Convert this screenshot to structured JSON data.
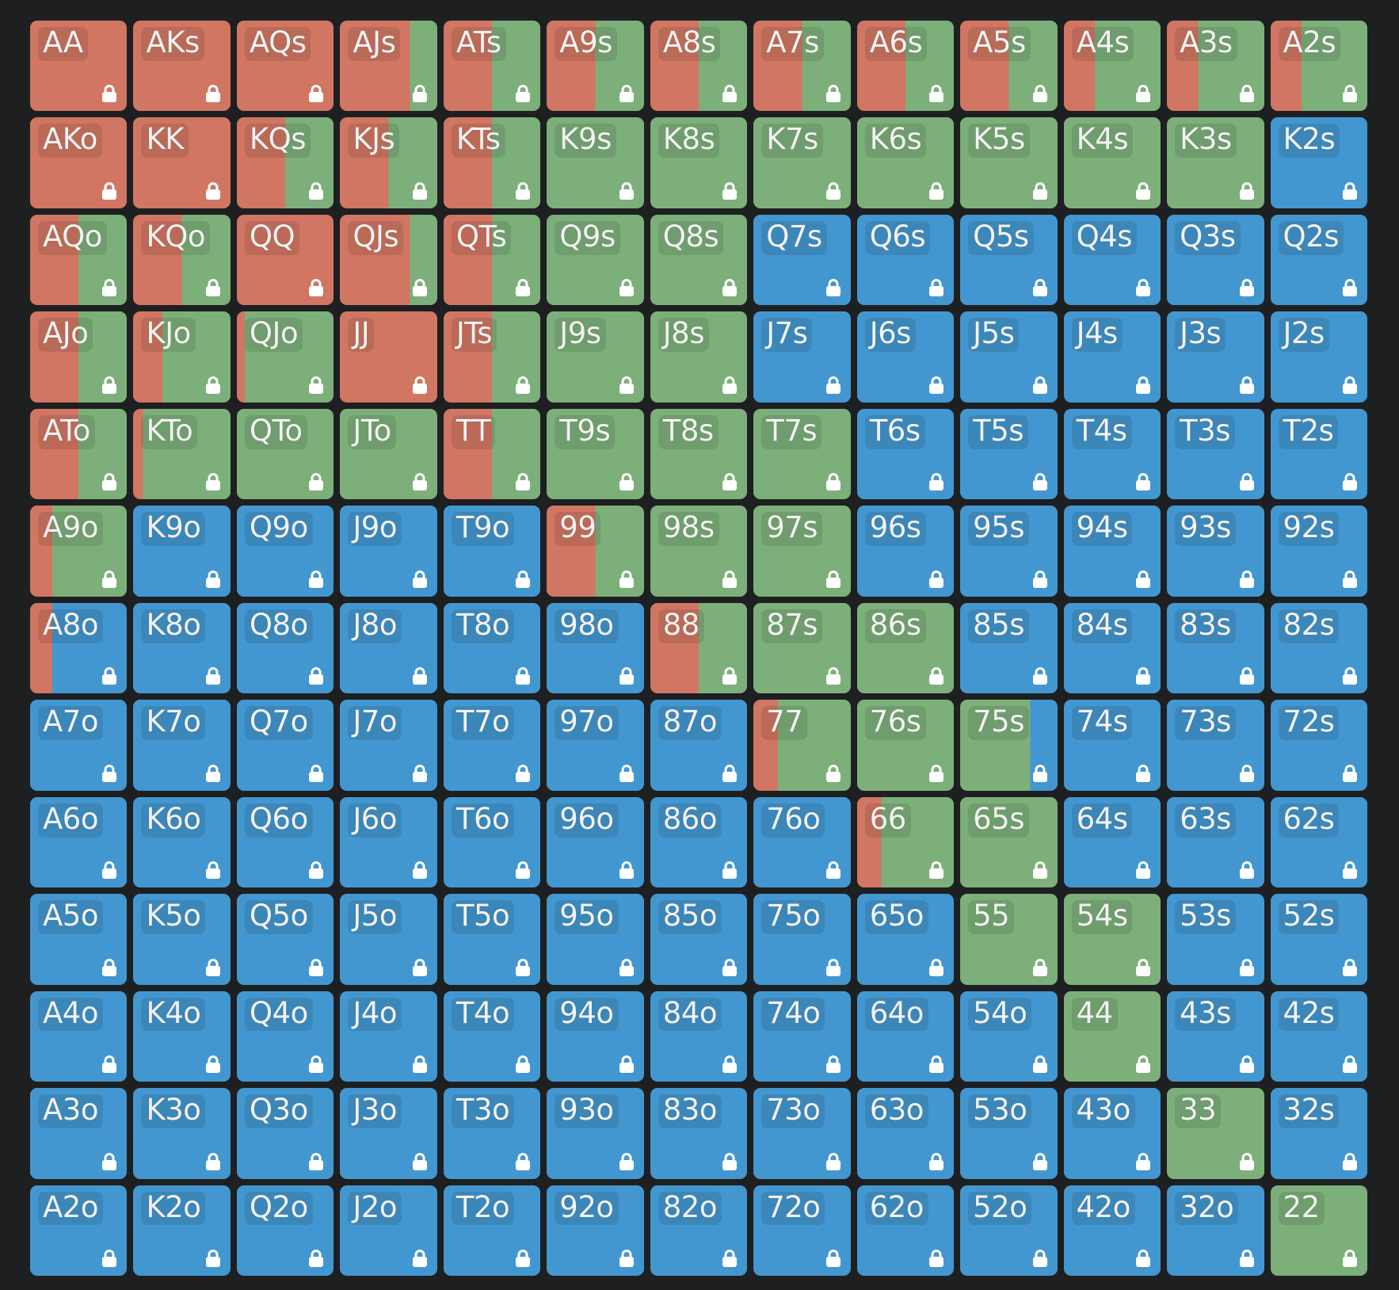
{
  "colors": {
    "raise": "#d17662",
    "call": "#7daf7a",
    "fold": "#4397d0",
    "background": "#1e1f21",
    "label_text": "#f3f3f3",
    "lock": "#ffffff"
  },
  "legend": {
    "frequency_order": [
      "raise",
      "call",
      "fold"
    ]
  },
  "icon": "lock-icon",
  "rows": [
    [
      {
        "label": "AA",
        "raise": 1,
        "call": 0
      },
      {
        "label": "AKs",
        "raise": 1,
        "call": 0
      },
      {
        "label": "AQs",
        "raise": 1,
        "call": 0
      },
      {
        "label": "AJs",
        "raise": 0.72,
        "call": 0.28
      },
      {
        "label": "ATs",
        "raise": 0.5,
        "call": 0.5
      },
      {
        "label": "A9s",
        "raise": 0.5,
        "call": 0.5
      },
      {
        "label": "A8s",
        "raise": 0.5,
        "call": 0.5
      },
      {
        "label": "A7s",
        "raise": 0.5,
        "call": 0.5
      },
      {
        "label": "A6s",
        "raise": 0.5,
        "call": 0.5
      },
      {
        "label": "A5s",
        "raise": 0.5,
        "call": 0.5
      },
      {
        "label": "A4s",
        "raise": 0.32,
        "call": 0.68
      },
      {
        "label": "A3s",
        "raise": 0.32,
        "call": 0.68
      },
      {
        "label": "A2s",
        "raise": 0.32,
        "call": 0.68
      }
    ],
    [
      {
        "label": "AKo",
        "raise": 1,
        "call": 0
      },
      {
        "label": "KK",
        "raise": 1,
        "call": 0
      },
      {
        "label": "KQs",
        "raise": 0.5,
        "call": 0.5
      },
      {
        "label": "KJs",
        "raise": 0.5,
        "call": 0.5
      },
      {
        "label": "KTs",
        "raise": 0.5,
        "call": 0.5
      },
      {
        "label": "K9s",
        "raise": 0,
        "call": 1
      },
      {
        "label": "K8s",
        "raise": 0,
        "call": 1
      },
      {
        "label": "K7s",
        "raise": 0,
        "call": 1
      },
      {
        "label": "K6s",
        "raise": 0,
        "call": 1
      },
      {
        "label": "K5s",
        "raise": 0,
        "call": 1
      },
      {
        "label": "K4s",
        "raise": 0,
        "call": 1
      },
      {
        "label": "K3s",
        "raise": 0,
        "call": 1
      },
      {
        "label": "K2s",
        "raise": 0,
        "call": 0
      }
    ],
    [
      {
        "label": "AQo",
        "raise": 0.5,
        "call": 0.5
      },
      {
        "label": "KQo",
        "raise": 0.5,
        "call": 0.5
      },
      {
        "label": "QQ",
        "raise": 1,
        "call": 0
      },
      {
        "label": "QJs",
        "raise": 0.72,
        "call": 0.28
      },
      {
        "label": "QTs",
        "raise": 0.5,
        "call": 0.5
      },
      {
        "label": "Q9s",
        "raise": 0,
        "call": 1
      },
      {
        "label": "Q8s",
        "raise": 0,
        "call": 1
      },
      {
        "label": "Q7s",
        "raise": 0,
        "call": 0
      },
      {
        "label": "Q6s",
        "raise": 0,
        "call": 0
      },
      {
        "label": "Q5s",
        "raise": 0,
        "call": 0
      },
      {
        "label": "Q4s",
        "raise": 0,
        "call": 0
      },
      {
        "label": "Q3s",
        "raise": 0,
        "call": 0
      },
      {
        "label": "Q2s",
        "raise": 0,
        "call": 0
      }
    ],
    [
      {
        "label": "AJo",
        "raise": 0.5,
        "call": 0.5
      },
      {
        "label": "KJo",
        "raise": 0.3,
        "call": 0.7
      },
      {
        "label": "QJo",
        "raise": 0.08,
        "call": 0.92
      },
      {
        "label": "JJ",
        "raise": 1,
        "call": 0
      },
      {
        "label": "JTs",
        "raise": 0.5,
        "call": 0.5
      },
      {
        "label": "J9s",
        "raise": 0,
        "call": 1
      },
      {
        "label": "J8s",
        "raise": 0,
        "call": 1
      },
      {
        "label": "J7s",
        "raise": 0,
        "call": 0
      },
      {
        "label": "J6s",
        "raise": 0,
        "call": 0
      },
      {
        "label": "J5s",
        "raise": 0,
        "call": 0
      },
      {
        "label": "J4s",
        "raise": 0,
        "call": 0
      },
      {
        "label": "J3s",
        "raise": 0,
        "call": 0
      },
      {
        "label": "J2s",
        "raise": 0,
        "call": 0
      }
    ],
    [
      {
        "label": "ATo",
        "raise": 0.5,
        "call": 0.5
      },
      {
        "label": "KTo",
        "raise": 0.1,
        "call": 0.9
      },
      {
        "label": "QTo",
        "raise": 0,
        "call": 1
      },
      {
        "label": "JTo",
        "raise": 0,
        "call": 1
      },
      {
        "label": "TT",
        "raise": 0.5,
        "call": 0.5
      },
      {
        "label": "T9s",
        "raise": 0,
        "call": 1
      },
      {
        "label": "T8s",
        "raise": 0,
        "call": 1
      },
      {
        "label": "T7s",
        "raise": 0,
        "call": 1
      },
      {
        "label": "T6s",
        "raise": 0,
        "call": 0
      },
      {
        "label": "T5s",
        "raise": 0,
        "call": 0
      },
      {
        "label": "T4s",
        "raise": 0,
        "call": 0
      },
      {
        "label": "T3s",
        "raise": 0,
        "call": 0
      },
      {
        "label": "T2s",
        "raise": 0,
        "call": 0
      }
    ],
    [
      {
        "label": "A9o",
        "raise": 0.23,
        "call": 0.77
      },
      {
        "label": "K9o",
        "raise": 0,
        "call": 0
      },
      {
        "label": "Q9o",
        "raise": 0,
        "call": 0
      },
      {
        "label": "J9o",
        "raise": 0,
        "call": 0
      },
      {
        "label": "T9o",
        "raise": 0,
        "call": 0
      },
      {
        "label": "99",
        "raise": 0.5,
        "call": 0.5
      },
      {
        "label": "98s",
        "raise": 0,
        "call": 1
      },
      {
        "label": "97s",
        "raise": 0,
        "call": 1
      },
      {
        "label": "96s",
        "raise": 0,
        "call": 0
      },
      {
        "label": "95s",
        "raise": 0,
        "call": 0
      },
      {
        "label": "94s",
        "raise": 0,
        "call": 0
      },
      {
        "label": "93s",
        "raise": 0,
        "call": 0
      },
      {
        "label": "92s",
        "raise": 0,
        "call": 0
      }
    ],
    [
      {
        "label": "A8o",
        "raise": 0.23,
        "call": 0
      },
      {
        "label": "K8o",
        "raise": 0,
        "call": 0
      },
      {
        "label": "Q8o",
        "raise": 0,
        "call": 0
      },
      {
        "label": "J8o",
        "raise": 0,
        "call": 0
      },
      {
        "label": "T8o",
        "raise": 0,
        "call": 0
      },
      {
        "label": "98o",
        "raise": 0,
        "call": 0
      },
      {
        "label": "88",
        "raise": 0.5,
        "call": 0.5
      },
      {
        "label": "87s",
        "raise": 0,
        "call": 1
      },
      {
        "label": "86s",
        "raise": 0,
        "call": 1
      },
      {
        "label": "85s",
        "raise": 0,
        "call": 0
      },
      {
        "label": "84s",
        "raise": 0,
        "call": 0
      },
      {
        "label": "83s",
        "raise": 0,
        "call": 0
      },
      {
        "label": "82s",
        "raise": 0,
        "call": 0
      }
    ],
    [
      {
        "label": "A7o",
        "raise": 0,
        "call": 0
      },
      {
        "label": "K7o",
        "raise": 0,
        "call": 0
      },
      {
        "label": "Q7o",
        "raise": 0,
        "call": 0
      },
      {
        "label": "J7o",
        "raise": 0,
        "call": 0
      },
      {
        "label": "T7o",
        "raise": 0,
        "call": 0
      },
      {
        "label": "97o",
        "raise": 0,
        "call": 0
      },
      {
        "label": "87o",
        "raise": 0,
        "call": 0
      },
      {
        "label": "77",
        "raise": 0.25,
        "call": 0.75
      },
      {
        "label": "76s",
        "raise": 0,
        "call": 1
      },
      {
        "label": "75s",
        "raise": 0,
        "call": 0.72
      },
      {
        "label": "74s",
        "raise": 0,
        "call": 0
      },
      {
        "label": "73s",
        "raise": 0,
        "call": 0
      },
      {
        "label": "72s",
        "raise": 0,
        "call": 0
      }
    ],
    [
      {
        "label": "A6o",
        "raise": 0,
        "call": 0
      },
      {
        "label": "K6o",
        "raise": 0,
        "call": 0
      },
      {
        "label": "Q6o",
        "raise": 0,
        "call": 0
      },
      {
        "label": "J6o",
        "raise": 0,
        "call": 0
      },
      {
        "label": "T6o",
        "raise": 0,
        "call": 0
      },
      {
        "label": "96o",
        "raise": 0,
        "call": 0
      },
      {
        "label": "86o",
        "raise": 0,
        "call": 0
      },
      {
        "label": "76o",
        "raise": 0,
        "call": 0
      },
      {
        "label": "66",
        "raise": 0.25,
        "call": 0.75
      },
      {
        "label": "65s",
        "raise": 0,
        "call": 1
      },
      {
        "label": "64s",
        "raise": 0,
        "call": 0
      },
      {
        "label": "63s",
        "raise": 0,
        "call": 0
      },
      {
        "label": "62s",
        "raise": 0,
        "call": 0
      }
    ],
    [
      {
        "label": "A5o",
        "raise": 0,
        "call": 0
      },
      {
        "label": "K5o",
        "raise": 0,
        "call": 0
      },
      {
        "label": "Q5o",
        "raise": 0,
        "call": 0
      },
      {
        "label": "J5o",
        "raise": 0,
        "call": 0
      },
      {
        "label": "T5o",
        "raise": 0,
        "call": 0
      },
      {
        "label": "95o",
        "raise": 0,
        "call": 0
      },
      {
        "label": "85o",
        "raise": 0,
        "call": 0
      },
      {
        "label": "75o",
        "raise": 0,
        "call": 0
      },
      {
        "label": "65o",
        "raise": 0,
        "call": 0
      },
      {
        "label": "55",
        "raise": 0,
        "call": 1
      },
      {
        "label": "54s",
        "raise": 0,
        "call": 1
      },
      {
        "label": "53s",
        "raise": 0,
        "call": 0
      },
      {
        "label": "52s",
        "raise": 0,
        "call": 0
      }
    ],
    [
      {
        "label": "A4o",
        "raise": 0,
        "call": 0
      },
      {
        "label": "K4o",
        "raise": 0,
        "call": 0
      },
      {
        "label": "Q4o",
        "raise": 0,
        "call": 0
      },
      {
        "label": "J4o",
        "raise": 0,
        "call": 0
      },
      {
        "label": "T4o",
        "raise": 0,
        "call": 0
      },
      {
        "label": "94o",
        "raise": 0,
        "call": 0
      },
      {
        "label": "84o",
        "raise": 0,
        "call": 0
      },
      {
        "label": "74o",
        "raise": 0,
        "call": 0
      },
      {
        "label": "64o",
        "raise": 0,
        "call": 0
      },
      {
        "label": "54o",
        "raise": 0,
        "call": 0
      },
      {
        "label": "44",
        "raise": 0,
        "call": 1
      },
      {
        "label": "43s",
        "raise": 0,
        "call": 0
      },
      {
        "label": "42s",
        "raise": 0,
        "call": 0
      }
    ],
    [
      {
        "label": "A3o",
        "raise": 0,
        "call": 0
      },
      {
        "label": "K3o",
        "raise": 0,
        "call": 0
      },
      {
        "label": "Q3o",
        "raise": 0,
        "call": 0
      },
      {
        "label": "J3o",
        "raise": 0,
        "call": 0
      },
      {
        "label": "T3o",
        "raise": 0,
        "call": 0
      },
      {
        "label": "93o",
        "raise": 0,
        "call": 0
      },
      {
        "label": "83o",
        "raise": 0,
        "call": 0
      },
      {
        "label": "73o",
        "raise": 0,
        "call": 0
      },
      {
        "label": "63o",
        "raise": 0,
        "call": 0
      },
      {
        "label": "53o",
        "raise": 0,
        "call": 0
      },
      {
        "label": "43o",
        "raise": 0,
        "call": 0
      },
      {
        "label": "33",
        "raise": 0,
        "call": 1
      },
      {
        "label": "32s",
        "raise": 0,
        "call": 0
      }
    ],
    [
      {
        "label": "A2o",
        "raise": 0,
        "call": 0
      },
      {
        "label": "K2o",
        "raise": 0,
        "call": 0
      },
      {
        "label": "Q2o",
        "raise": 0,
        "call": 0
      },
      {
        "label": "J2o",
        "raise": 0,
        "call": 0
      },
      {
        "label": "T2o",
        "raise": 0,
        "call": 0
      },
      {
        "label": "92o",
        "raise": 0,
        "call": 0
      },
      {
        "label": "82o",
        "raise": 0,
        "call": 0
      },
      {
        "label": "72o",
        "raise": 0,
        "call": 0
      },
      {
        "label": "62o",
        "raise": 0,
        "call": 0
      },
      {
        "label": "52o",
        "raise": 0,
        "call": 0
      },
      {
        "label": "42o",
        "raise": 0,
        "call": 0
      },
      {
        "label": "32o",
        "raise": 0,
        "call": 0
      },
      {
        "label": "22",
        "raise": 0,
        "call": 1
      }
    ]
  ]
}
